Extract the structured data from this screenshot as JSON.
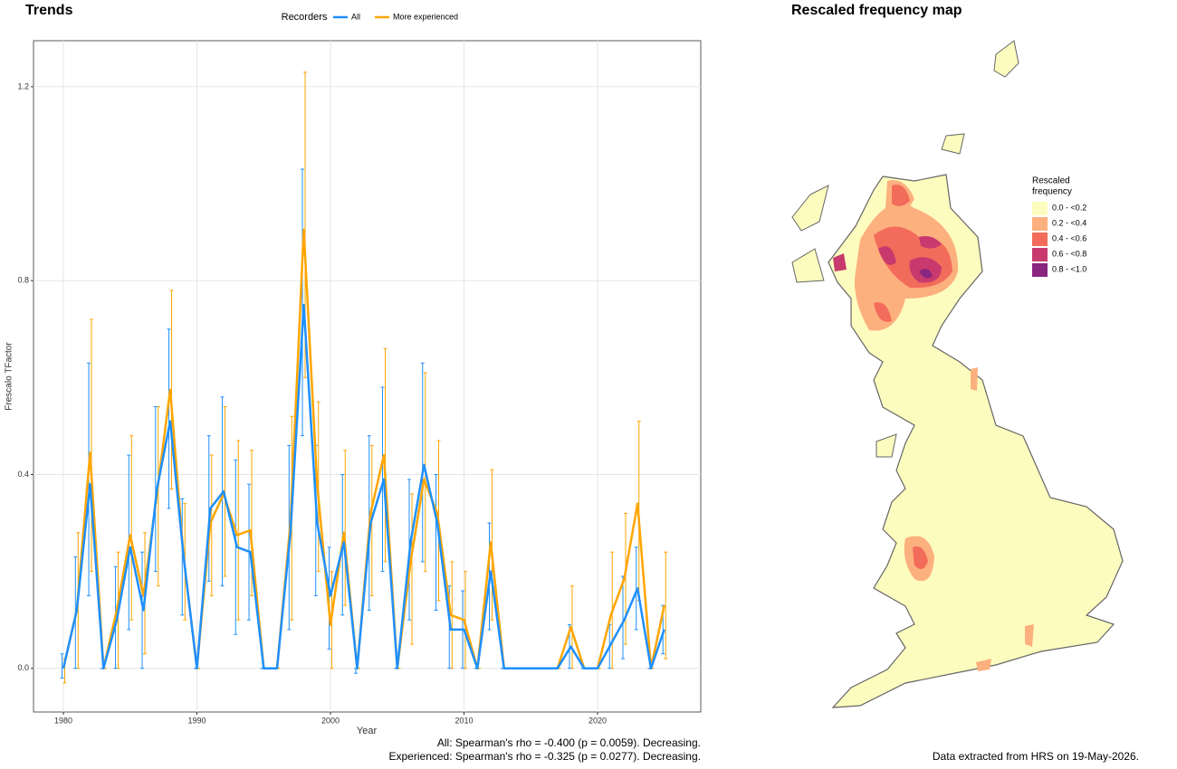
{
  "chart_data": [
    {
      "type": "line",
      "title": "Trends",
      "xlabel": "Year",
      "ylabel": "Frescalo TFactor",
      "legend_title": "Recorders",
      "legend": "top",
      "x": [
        1980,
        1981,
        1982,
        1983,
        1984,
        1985,
        1986,
        1987,
        1988,
        1989,
        1990,
        1991,
        1992,
        1993,
        1994,
        1995,
        1996,
        1997,
        1998,
        1999,
        2000,
        2001,
        2002,
        2003,
        2004,
        2005,
        2006,
        2007,
        2008,
        2009,
        2010,
        2011,
        2012,
        2013,
        2014,
        2015,
        2016,
        2017,
        2018,
        2019,
        2020,
        2021,
        2022,
        2023,
        2024,
        2025
      ],
      "series": [
        {
          "name": "All",
          "color": "#1e90ff",
          "values": [
            0,
            0.12,
            0.38,
            0,
            0.1,
            0.25,
            0.12,
            0.37,
            0.51,
            0.23,
            0,
            0.33,
            0.365,
            0.25,
            0.24,
            0,
            0,
            0.28,
            0.75,
            0.3,
            0.15,
            0.26,
            0,
            0.3,
            0.39,
            0,
            0.26,
            0.42,
            0.3,
            0.08,
            0.08,
            0,
            0.2,
            0,
            0,
            0,
            0,
            0,
            0.045,
            0,
            0,
            0.05,
            0.1,
            0.165,
            0,
            0.08
          ],
          "lower": [
            -0.02,
            0,
            0.15,
            0,
            0,
            0.08,
            0,
            0.2,
            0.33,
            0.11,
            0,
            0.18,
            0.17,
            0.07,
            0.1,
            0,
            0,
            0.08,
            0.48,
            0.15,
            0.04,
            0.11,
            -0.01,
            0.12,
            0.2,
            0,
            0.1,
            0.22,
            0.12,
            0,
            0,
            0,
            0.08,
            0,
            0,
            0,
            0,
            0,
            0,
            0,
            0,
            0,
            0.02,
            0.08,
            0,
            0.03
          ],
          "upper": [
            0.03,
            0.23,
            0.63,
            0,
            0.21,
            0.44,
            0.24,
            0.54,
            0.7,
            0.35,
            0,
            0.48,
            0.56,
            0.43,
            0.38,
            0,
            0,
            0.46,
            1.03,
            0.46,
            0.25,
            0.4,
            0,
            0.48,
            0.58,
            0,
            0.39,
            0.63,
            0.4,
            0.17,
            0.16,
            0,
            0.3,
            0,
            0,
            0,
            0,
            0,
            0.09,
            0,
            0,
            0.09,
            0.19,
            0.25,
            0,
            0.13
          ]
        },
        {
          "name": "More experienced",
          "color": "#ffa500",
          "values": [
            0,
            0.12,
            0.445,
            0,
            0.12,
            0.275,
            0.15,
            0.36,
            0.575,
            0.23,
            0,
            0.3,
            0.36,
            0.275,
            0.285,
            0,
            0,
            0.3,
            0.905,
            0.38,
            0.09,
            0.28,
            0,
            0.32,
            0.44,
            0,
            0.22,
            0.39,
            0.32,
            0.11,
            0.1,
            0,
            0.26,
            0,
            0,
            0,
            0,
            0,
            0.085,
            0,
            0,
            0.11,
            0.185,
            0.34,
            0,
            0.13
          ],
          "lower": [
            -0.03,
            0,
            0.2,
            0,
            0,
            0.1,
            0.03,
            0.17,
            0.37,
            0.1,
            0,
            0.15,
            0.19,
            0.1,
            0.15,
            0,
            0,
            0.1,
            0.6,
            0.2,
            0,
            0.13,
            0,
            0.15,
            0.22,
            0,
            0.05,
            0.2,
            0.14,
            0,
            0,
            0,
            0.1,
            0,
            0,
            0,
            0,
            0,
            0,
            0,
            0,
            0,
            0.05,
            0.14,
            0,
            0.02
          ],
          "upper": [
            0.02,
            0.28,
            0.72,
            0,
            0.24,
            0.48,
            0.28,
            0.54,
            0.78,
            0.34,
            0,
            0.44,
            0.54,
            0.47,
            0.45,
            0,
            0,
            0.52,
            1.23,
            0.55,
            0.2,
            0.45,
            0,
            0.46,
            0.66,
            0,
            0.36,
            0.61,
            0.47,
            0.22,
            0.2,
            0,
            0.41,
            0,
            0,
            0,
            0,
            0,
            0.17,
            0,
            0,
            0.24,
            0.32,
            0.51,
            0,
            0.24
          ]
        }
      ],
      "xlim": [
        1977.76,
        2027.73
      ],
      "xticks": [
        1980,
        1990,
        2000,
        2010,
        2020
      ],
      "ylim": [
        -0.09,
        1.295
      ],
      "yticks": [
        {
          "value": 0,
          "label": "0.0"
        },
        0.4,
        0.8,
        1.2
      ],
      "grid": true,
      "annotations": [
        "All: Spearman's rho = -0.400 (p = 0.0059). Decreasing.",
        "Experienced: Spearman's rho = -0.325 (p = 0.0277). Decreasing."
      ]
    }
  ],
  "map": {
    "title": "Rescaled frequency map",
    "legend_title": [
      "Rescaled",
      "frequency"
    ],
    "legend": [
      {
        "label": "0.0 - <0.2",
        "color": "#fdfcbf"
      },
      {
        "label": "0.2 - <0.4",
        "color": "#fcb07e"
      },
      {
        "label": "0.4 - <0.6",
        "color": "#f36b5a"
      },
      {
        "label": "0.6 - <0.8",
        "color": "#c83a6e"
      },
      {
        "label": "0.8 - <1.0",
        "color": "#8a2680"
      }
    ],
    "caption": "Data extracted from HRS on 19-May-2026."
  }
}
